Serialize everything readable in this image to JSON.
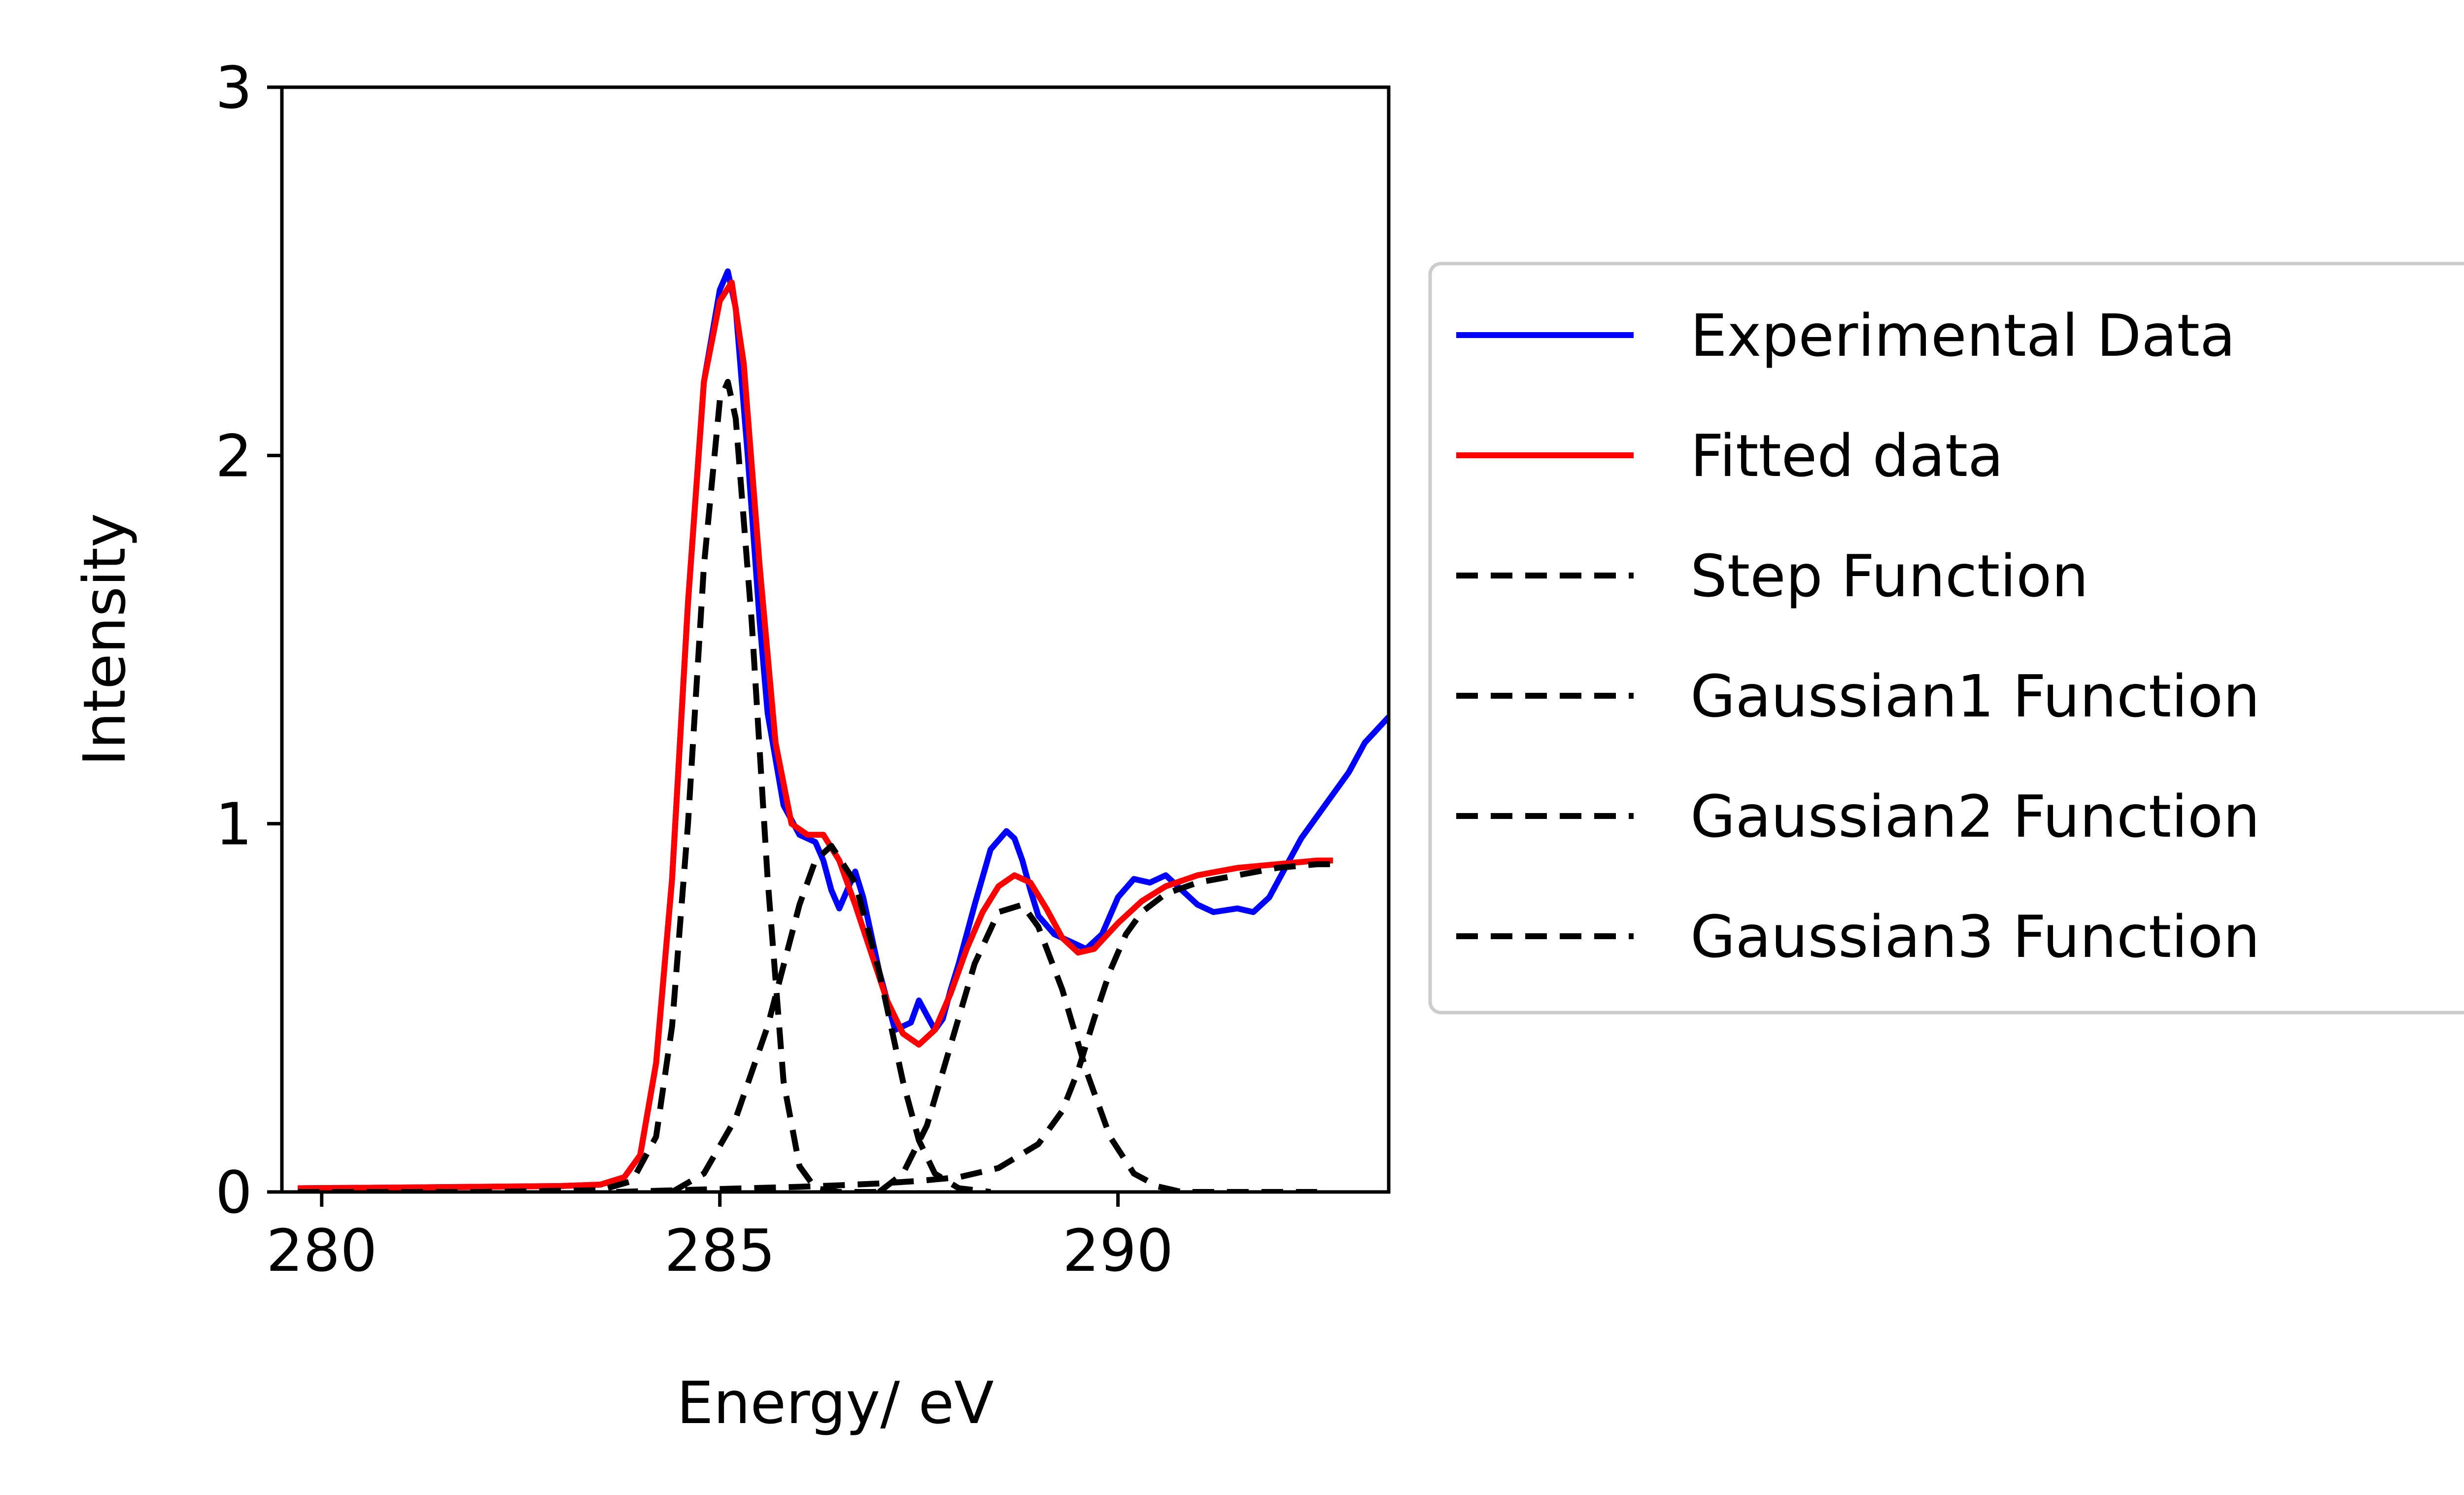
{
  "chart_data": {
    "type": "line",
    "title": "",
    "xlabel": "Energy/ eV",
    "ylabel": "Intensity",
    "xlim": [
      279.5,
      293.4
    ],
    "ylim": [
      0,
      3
    ],
    "xticks": [
      280,
      285,
      290
    ],
    "yticks": [
      0,
      1,
      2,
      3
    ],
    "xtick_labels": [
      "280",
      "285",
      "290"
    ],
    "ytick_labels": [
      "0",
      "1",
      "2",
      "3"
    ],
    "grid": false,
    "legend_position": "right",
    "series": [
      {
        "name": "Experimental Data",
        "color": "#0000ff",
        "dash": "solid",
        "x": [
          279.7,
          281.0,
          282.0,
          283.0,
          283.5,
          283.8,
          284.0,
          284.2,
          284.4,
          284.6,
          284.8,
          285.0,
          285.1,
          285.2,
          285.35,
          285.5,
          285.6,
          285.8,
          286.0,
          286.2,
          286.3,
          286.4,
          286.5,
          286.7,
          286.8,
          287.0,
          287.2,
          287.4,
          287.5,
          287.6,
          287.7,
          287.8,
          287.9,
          288.0,
          288.2,
          288.4,
          288.6,
          288.7,
          288.8,
          288.9,
          289.0,
          289.2,
          289.4,
          289.6,
          289.8,
          290.0,
          290.2,
          290.4,
          290.6,
          290.8,
          291.0,
          291.2,
          291.5,
          291.7,
          291.9,
          292.1,
          292.3,
          292.6,
          292.9,
          293.1,
          293.4
        ],
        "y": [
          0.01,
          0.012,
          0.014,
          0.016,
          0.02,
          0.04,
          0.1,
          0.35,
          0.85,
          1.6,
          2.2,
          2.45,
          2.5,
          2.4,
          2.0,
          1.55,
          1.3,
          1.05,
          0.97,
          0.95,
          0.9,
          0.82,
          0.77,
          0.87,
          0.8,
          0.6,
          0.44,
          0.46,
          0.52,
          0.48,
          0.44,
          0.47,
          0.55,
          0.62,
          0.78,
          0.93,
          0.98,
          0.96,
          0.9,
          0.82,
          0.75,
          0.7,
          0.68,
          0.66,
          0.7,
          0.8,
          0.85,
          0.84,
          0.86,
          0.82,
          0.78,
          0.76,
          0.77,
          0.76,
          0.8,
          0.88,
          0.96,
          1.05,
          1.14,
          1.22,
          1.29
        ]
      },
      {
        "name": "Fitted data",
        "color": "#ff0000",
        "dash": "solid",
        "x": [
          279.7,
          281.0,
          282.0,
          283.0,
          283.5,
          283.8,
          284.0,
          284.2,
          284.4,
          284.6,
          284.8,
          285.0,
          285.15,
          285.3,
          285.5,
          285.7,
          285.9,
          286.1,
          286.3,
          286.5,
          286.7,
          286.9,
          287.1,
          287.3,
          287.5,
          287.7,
          287.9,
          288.1,
          288.3,
          288.5,
          288.7,
          288.9,
          289.1,
          289.3,
          289.5,
          289.7,
          290.0,
          290.3,
          290.6,
          291.0,
          291.5,
          292.0,
          292.5,
          292.7
        ],
        "y": [
          0.01,
          0.012,
          0.014,
          0.016,
          0.02,
          0.04,
          0.1,
          0.35,
          0.85,
          1.6,
          2.2,
          2.42,
          2.47,
          2.25,
          1.7,
          1.22,
          1.0,
          0.97,
          0.97,
          0.9,
          0.78,
          0.65,
          0.52,
          0.43,
          0.4,
          0.44,
          0.54,
          0.66,
          0.76,
          0.83,
          0.86,
          0.84,
          0.77,
          0.69,
          0.65,
          0.66,
          0.73,
          0.79,
          0.83,
          0.86,
          0.88,
          0.89,
          0.9,
          0.9
        ]
      },
      {
        "name": "Step Function",
        "color": "#000000",
        "dash": "dashed",
        "x": [
          283.7,
          284.5,
          285.0,
          285.5,
          286.0,
          286.5,
          287.0,
          287.5,
          288.0,
          288.5,
          289.0,
          289.3,
          289.5,
          289.7,
          289.9,
          290.1,
          290.3,
          290.6,
          291.0,
          291.5,
          292.0,
          292.5,
          292.7
        ],
        "y": [
          0.0,
          0.005,
          0.008,
          0.011,
          0.014,
          0.018,
          0.023,
          0.03,
          0.04,
          0.065,
          0.13,
          0.22,
          0.33,
          0.47,
          0.6,
          0.7,
          0.76,
          0.81,
          0.84,
          0.86,
          0.88,
          0.89,
          0.89
        ]
      },
      {
        "name": "Gaussian1 Function",
        "color": "#000000",
        "dash": "dashed",
        "x": [
          279.7,
          282.0,
          283.5,
          283.9,
          284.2,
          284.4,
          284.6,
          284.8,
          285.0,
          285.1,
          285.2,
          285.4,
          285.6,
          285.8,
          286.0,
          286.2,
          286.5,
          287.0
        ],
        "y": [
          0.0,
          0.0,
          0.005,
          0.03,
          0.15,
          0.45,
          1.0,
          1.7,
          2.15,
          2.2,
          2.1,
          1.55,
          0.85,
          0.3,
          0.07,
          0.01,
          0.0,
          0.0
        ]
      },
      {
        "name": "Gaussian2 Function",
        "color": "#000000",
        "dash": "dashed",
        "x": [
          284.4,
          284.8,
          285.2,
          285.6,
          286.0,
          286.2,
          286.4,
          286.7,
          287.0,
          287.3,
          287.5,
          287.7,
          288.0,
          288.4
        ],
        "y": [
          0.0,
          0.05,
          0.2,
          0.45,
          0.78,
          0.9,
          0.94,
          0.84,
          0.6,
          0.3,
          0.14,
          0.05,
          0.01,
          0.0
        ]
      },
      {
        "name": "Gaussian3 Function",
        "color": "#000000",
        "dash": "dashed",
        "x": [
          287.0,
          287.3,
          287.6,
          287.9,
          288.2,
          288.5,
          288.8,
          289.0,
          289.3,
          289.6,
          289.9,
          290.2,
          290.5,
          290.8,
          291.2,
          292.5
        ],
        "y": [
          0.0,
          0.05,
          0.18,
          0.4,
          0.62,
          0.76,
          0.78,
          0.72,
          0.55,
          0.33,
          0.15,
          0.05,
          0.015,
          0.0,
          0.0,
          0.0
        ]
      }
    ]
  }
}
